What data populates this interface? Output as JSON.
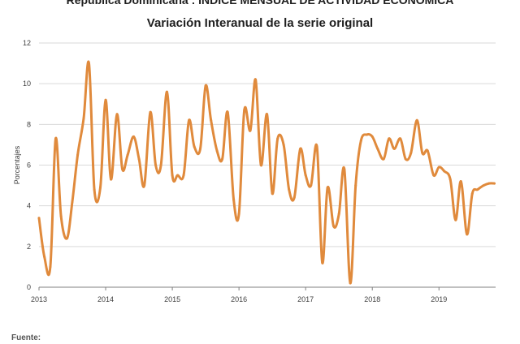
{
  "title": "República Dominicana : ÍNDICE MENSUAL DE ACTIVIDAD ECONÓMICA",
  "subtitle": "Variación Interanual de la serie original",
  "footer": {
    "source_label": "Fuente:"
  },
  "colors": {
    "series": "#E08A3C",
    "grid": "#D9D9D9",
    "axis": "#808080"
  },
  "chart_data": {
    "type": "line",
    "ylabel": "Porcentajes",
    "ylim": [
      0,
      12
    ],
    "yticks": [
      0,
      2,
      4,
      6,
      8,
      10,
      12
    ],
    "xlim": [
      2013.0,
      2019.85
    ],
    "xticks": [
      "2013",
      "2014",
      "2015",
      "2016",
      "2017",
      "2018",
      "2019"
    ],
    "grid": "horizontal",
    "series": [
      {
        "x": [
          2013.0,
          2013.08,
          2013.17,
          2013.25,
          2013.33,
          2013.42,
          2013.5,
          2013.58,
          2013.67,
          2013.75,
          2013.83,
          2013.92,
          2014.0,
          2014.08,
          2014.17,
          2014.25,
          2014.33,
          2014.42,
          2014.5,
          2014.58,
          2014.67,
          2014.75,
          2014.83,
          2014.92,
          2015.0,
          2015.08,
          2015.17,
          2015.25,
          2015.33,
          2015.42,
          2015.5,
          2015.58,
          2015.67,
          2015.75,
          2015.83,
          2015.92,
          2016.0,
          2016.08,
          2016.17,
          2016.25,
          2016.33,
          2016.42,
          2016.5,
          2016.58,
          2016.67,
          2016.75,
          2016.83,
          2016.92,
          2017.0,
          2017.08,
          2017.17,
          2017.25,
          2017.33,
          2017.42,
          2017.5,
          2017.58,
          2017.67,
          2017.75,
          2017.83,
          2017.92,
          2018.0,
          2018.08,
          2018.17,
          2018.25,
          2018.33,
          2018.42,
          2018.5,
          2018.58,
          2018.67,
          2018.75,
          2018.83,
          2018.92,
          2019.0,
          2019.08,
          2019.17,
          2019.25,
          2019.33,
          2019.42,
          2019.5,
          2019.58,
          2019.67,
          2019.75,
          2019.83
        ],
        "values": [
          3.4,
          1.5,
          1.0,
          7.3,
          3.5,
          2.4,
          4.2,
          6.5,
          8.3,
          11.0,
          4.8,
          4.9,
          9.2,
          5.3,
          8.5,
          5.8,
          6.5,
          7.4,
          6.3,
          5.0,
          8.6,
          6.0,
          6.0,
          9.6,
          5.5,
          5.5,
          5.5,
          8.2,
          6.9,
          6.8,
          9.9,
          8.2,
          6.7,
          6.3,
          8.6,
          4.3,
          3.6,
          8.7,
          7.7,
          10.2,
          6.0,
          8.5,
          4.6,
          7.3,
          7.0,
          4.8,
          4.4,
          6.8,
          5.5,
          5.0,
          6.9,
          1.2,
          4.9,
          3.0,
          3.6,
          5.8,
          0.2,
          5.0,
          7.2,
          7.5,
          7.4,
          6.8,
          6.3,
          7.3,
          6.8,
          7.3,
          6.3,
          6.6,
          8.2,
          6.6,
          6.7,
          5.5,
          5.9,
          5.7,
          5.3,
          3.3,
          5.2,
          2.6,
          4.6,
          4.8,
          5.0,
          5.1,
          5.1
        ]
      }
    ]
  }
}
